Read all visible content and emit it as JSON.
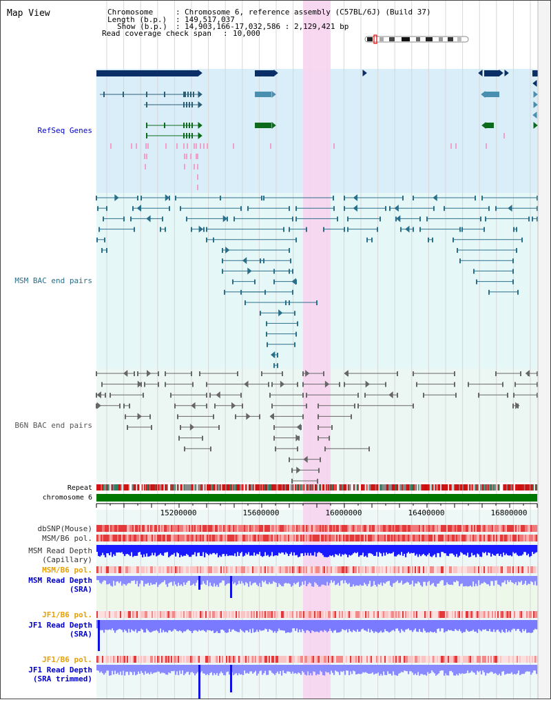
{
  "header": {
    "title": "Map View",
    "info": [
      {
        "label": "Chromosome",
        "sep": ":",
        "value": "Chromosome 6, reference assembly (C57BL/6J) (Build 37)"
      },
      {
        "label": "Length (b.p.)",
        "sep": ":",
        "value": "149,517,037"
      },
      {
        "label": "Show (b.p.)",
        "sep": ":",
        "value": "14,903,166-17,032,586 : 2,129,421 bp"
      },
      {
        "label": "Read coverage check span",
        "sep": ":",
        "value": "10,000"
      }
    ]
  },
  "tracks": {
    "refseq": "RefSeq Genes",
    "msm_bac": "MSM BAC end pairs",
    "b6n_bac": "B6N BAC end pairs",
    "repeat": "Repeat",
    "chromosome": "chromosome 6",
    "dbsnp": "dbSNP(Mouse)",
    "msm_b6_pol": "MSM/B6 pol.",
    "msm_read_depth_cap_1": "MSM Read Depth",
    "msm_read_depth_cap_2": "(Capillary)",
    "msm_b6_pol_sra": "MSM/B6 pol.",
    "msm_read_depth_sra_1": "MSM Read Depth",
    "msm_read_depth_sra_2": "(SRA)",
    "jf1_b6_pol": "JF1/B6 pol.",
    "jf1_read_depth_sra_1": "JF1 Read Depth",
    "jf1_read_depth_sra_2": "(SRA)",
    "jf1_b6_pol_2": "JF1/B6 pol.",
    "jf1_read_depth_trim_1": "JF1 Read Depth",
    "jf1_read_depth_trim_2": "(SRA trimmed)"
  },
  "axis": {
    "ticks": [
      "15200000",
      "15600000",
      "16000000",
      "16400000",
      "16800000"
    ]
  },
  "colors": {
    "refseq_bg": "#d9eef8",
    "bac_bg": "#e6f7f8",
    "highlight": "#f7d4f0",
    "refseq_label": "#0000cc",
    "msm_label": "#2a6f8a",
    "b6n_label": "#555555",
    "orange_label": "#e8a000",
    "blue_label": "#0000cc",
    "gene_dark": "#0a2f66",
    "gene_mid": "#4a8fb0",
    "gene_green": "#0b6b1a",
    "chrom_green": "#007700",
    "depth_blue": "#1a1aff",
    "depth_light": "#8a8aff"
  }
}
